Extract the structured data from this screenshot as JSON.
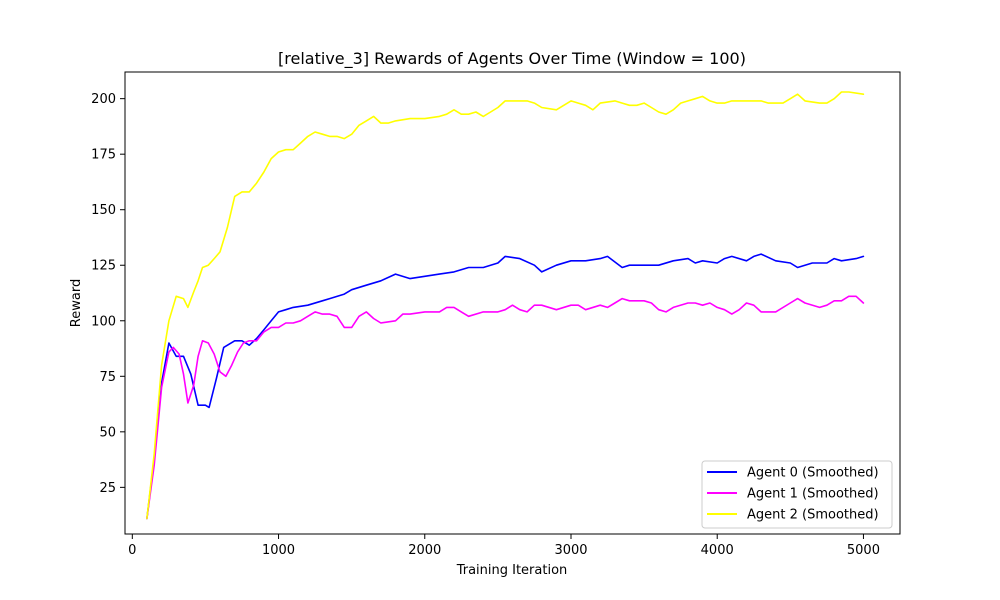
{
  "chart_data": {
    "type": "line",
    "title": "[relative_3] Rewards of Agents Over Time (Window = 100)",
    "xlabel": "Training Iteration",
    "ylabel": "Reward",
    "xlim": [
      -50,
      5250
    ],
    "ylim": [
      4,
      212
    ],
    "xticks": [
      0,
      1000,
      2000,
      3000,
      4000,
      5000
    ],
    "yticks": [
      25,
      50,
      75,
      100,
      125,
      150,
      175,
      200
    ],
    "grid": false,
    "legend_position": "lower-right",
    "series": [
      {
        "name": "Agent 0 (Smoothed)",
        "color": "#0000ff",
        "points": [
          [
            100,
            11
          ],
          [
            150,
            38
          ],
          [
            200,
            72
          ],
          [
            250,
            90
          ],
          [
            300,
            84
          ],
          [
            350,
            84
          ],
          [
            400,
            76
          ],
          [
            450,
            62
          ],
          [
            500,
            62
          ],
          [
            525,
            61
          ],
          [
            575,
            74
          ],
          [
            625,
            88
          ],
          [
            700,
            91
          ],
          [
            750,
            91
          ],
          [
            800,
            89
          ],
          [
            850,
            92
          ],
          [
            900,
            96
          ],
          [
            950,
            100
          ],
          [
            1000,
            104
          ],
          [
            1050,
            105
          ],
          [
            1100,
            106
          ],
          [
            1200,
            107
          ],
          [
            1300,
            109
          ],
          [
            1350,
            110
          ],
          [
            1450,
            112
          ],
          [
            1500,
            114
          ],
          [
            1600,
            116
          ],
          [
            1700,
            118
          ],
          [
            1800,
            121
          ],
          [
            1900,
            119
          ],
          [
            2000,
            120
          ],
          [
            2100,
            121
          ],
          [
            2200,
            122
          ],
          [
            2300,
            124
          ],
          [
            2400,
            124
          ],
          [
            2500,
            126
          ],
          [
            2550,
            129
          ],
          [
            2650,
            128
          ],
          [
            2750,
            125
          ],
          [
            2800,
            122
          ],
          [
            2900,
            125
          ],
          [
            3000,
            127
          ],
          [
            3100,
            127
          ],
          [
            3200,
            128
          ],
          [
            3250,
            129
          ],
          [
            3350,
            124
          ],
          [
            3400,
            125
          ],
          [
            3500,
            125
          ],
          [
            3600,
            125
          ],
          [
            3700,
            127
          ],
          [
            3800,
            128
          ],
          [
            3850,
            126
          ],
          [
            3900,
            127
          ],
          [
            4000,
            126
          ],
          [
            4050,
            128
          ],
          [
            4100,
            129
          ],
          [
            4200,
            127
          ],
          [
            4250,
            129
          ],
          [
            4300,
            130
          ],
          [
            4400,
            127
          ],
          [
            4500,
            126
          ],
          [
            4550,
            124
          ],
          [
            4650,
            126
          ],
          [
            4750,
            126
          ],
          [
            4800,
            128
          ],
          [
            4850,
            127
          ],
          [
            4950,
            128
          ],
          [
            5000,
            129
          ]
        ]
      },
      {
        "name": "Agent 1 (Smoothed)",
        "color": "#ff00ff",
        "points": [
          [
            100,
            11
          ],
          [
            150,
            35
          ],
          [
            200,
            70
          ],
          [
            250,
            86
          ],
          [
            280,
            88
          ],
          [
            320,
            85
          ],
          [
            350,
            76
          ],
          [
            380,
            63
          ],
          [
            420,
            71
          ],
          [
            450,
            84
          ],
          [
            480,
            91
          ],
          [
            520,
            90
          ],
          [
            560,
            85
          ],
          [
            600,
            77
          ],
          [
            640,
            75
          ],
          [
            680,
            80
          ],
          [
            720,
            86
          ],
          [
            760,
            90
          ],
          [
            800,
            91
          ],
          [
            850,
            91
          ],
          [
            900,
            95
          ],
          [
            950,
            97
          ],
          [
            1000,
            97
          ],
          [
            1050,
            99
          ],
          [
            1100,
            99
          ],
          [
            1150,
            100
          ],
          [
            1200,
            102
          ],
          [
            1250,
            104
          ],
          [
            1300,
            103
          ],
          [
            1350,
            103
          ],
          [
            1400,
            102
          ],
          [
            1450,
            97
          ],
          [
            1500,
            97
          ],
          [
            1550,
            102
          ],
          [
            1600,
            104
          ],
          [
            1650,
            101
          ],
          [
            1700,
            99
          ],
          [
            1800,
            100
          ],
          [
            1850,
            103
          ],
          [
            1900,
            103
          ],
          [
            2000,
            104
          ],
          [
            2100,
            104
          ],
          [
            2150,
            106
          ],
          [
            2200,
            106
          ],
          [
            2250,
            104
          ],
          [
            2300,
            102
          ],
          [
            2400,
            104
          ],
          [
            2500,
            104
          ],
          [
            2550,
            105
          ],
          [
            2600,
            107
          ],
          [
            2650,
            105
          ],
          [
            2700,
            104
          ],
          [
            2750,
            107
          ],
          [
            2800,
            107
          ],
          [
            2900,
            105
          ],
          [
            3000,
            107
          ],
          [
            3050,
            107
          ],
          [
            3100,
            105
          ],
          [
            3200,
            107
          ],
          [
            3250,
            106
          ],
          [
            3300,
            108
          ],
          [
            3350,
            110
          ],
          [
            3400,
            109
          ],
          [
            3500,
            109
          ],
          [
            3550,
            108
          ],
          [
            3600,
            105
          ],
          [
            3650,
            104
          ],
          [
            3700,
            106
          ],
          [
            3800,
            108
          ],
          [
            3850,
            108
          ],
          [
            3900,
            107
          ],
          [
            3950,
            108
          ],
          [
            4000,
            106
          ],
          [
            4050,
            105
          ],
          [
            4100,
            103
          ],
          [
            4150,
            105
          ],
          [
            4200,
            108
          ],
          [
            4250,
            107
          ],
          [
            4300,
            104
          ],
          [
            4400,
            104
          ],
          [
            4500,
            108
          ],
          [
            4550,
            110
          ],
          [
            4600,
            108
          ],
          [
            4700,
            106
          ],
          [
            4750,
            107
          ],
          [
            4800,
            109
          ],
          [
            4850,
            109
          ],
          [
            4900,
            111
          ],
          [
            4950,
            111
          ],
          [
            5000,
            108
          ]
        ]
      },
      {
        "name": "Agent 2 (Smoothed)",
        "color": "#ffff00",
        "points": [
          [
            100,
            11
          ],
          [
            150,
            40
          ],
          [
            200,
            80
          ],
          [
            250,
            100
          ],
          [
            300,
            111
          ],
          [
            350,
            110
          ],
          [
            380,
            106
          ],
          [
            420,
            113
          ],
          [
            450,
            118
          ],
          [
            480,
            124
          ],
          [
            520,
            125
          ],
          [
            560,
            128
          ],
          [
            600,
            131
          ],
          [
            650,
            142
          ],
          [
            700,
            156
          ],
          [
            750,
            158
          ],
          [
            800,
            158
          ],
          [
            850,
            162
          ],
          [
            900,
            167
          ],
          [
            950,
            173
          ],
          [
            1000,
            176
          ],
          [
            1050,
            177
          ],
          [
            1100,
            177
          ],
          [
            1150,
            180
          ],
          [
            1200,
            183
          ],
          [
            1250,
            185
          ],
          [
            1300,
            184
          ],
          [
            1350,
            183
          ],
          [
            1400,
            183
          ],
          [
            1450,
            182
          ],
          [
            1500,
            184
          ],
          [
            1550,
            188
          ],
          [
            1600,
            190
          ],
          [
            1650,
            192
          ],
          [
            1700,
            189
          ],
          [
            1750,
            189
          ],
          [
            1800,
            190
          ],
          [
            1900,
            191
          ],
          [
            2000,
            191
          ],
          [
            2100,
            192
          ],
          [
            2150,
            193
          ],
          [
            2200,
            195
          ],
          [
            2250,
            193
          ],
          [
            2300,
            193
          ],
          [
            2350,
            194
          ],
          [
            2400,
            192
          ],
          [
            2450,
            194
          ],
          [
            2500,
            196
          ],
          [
            2550,
            199
          ],
          [
            2600,
            199
          ],
          [
            2700,
            199
          ],
          [
            2750,
            198
          ],
          [
            2800,
            196
          ],
          [
            2900,
            195
          ],
          [
            3000,
            199
          ],
          [
            3050,
            198
          ],
          [
            3100,
            197
          ],
          [
            3150,
            195
          ],
          [
            3200,
            198
          ],
          [
            3300,
            199
          ],
          [
            3350,
            198
          ],
          [
            3400,
            197
          ],
          [
            3450,
            197
          ],
          [
            3500,
            198
          ],
          [
            3550,
            196
          ],
          [
            3600,
            194
          ],
          [
            3650,
            193
          ],
          [
            3700,
            195
          ],
          [
            3750,
            198
          ],
          [
            3800,
            199
          ],
          [
            3850,
            200
          ],
          [
            3900,
            201
          ],
          [
            3950,
            199
          ],
          [
            4000,
            198
          ],
          [
            4050,
            198
          ],
          [
            4100,
            199
          ],
          [
            4150,
            199
          ],
          [
            4200,
            199
          ],
          [
            4300,
            199
          ],
          [
            4350,
            198
          ],
          [
            4400,
            198
          ],
          [
            4450,
            198
          ],
          [
            4500,
            200
          ],
          [
            4550,
            202
          ],
          [
            4600,
            199
          ],
          [
            4700,
            198
          ],
          [
            4750,
            198
          ],
          [
            4800,
            200
          ],
          [
            4850,
            203
          ],
          [
            4900,
            203
          ],
          [
            5000,
            202
          ]
        ]
      }
    ]
  }
}
